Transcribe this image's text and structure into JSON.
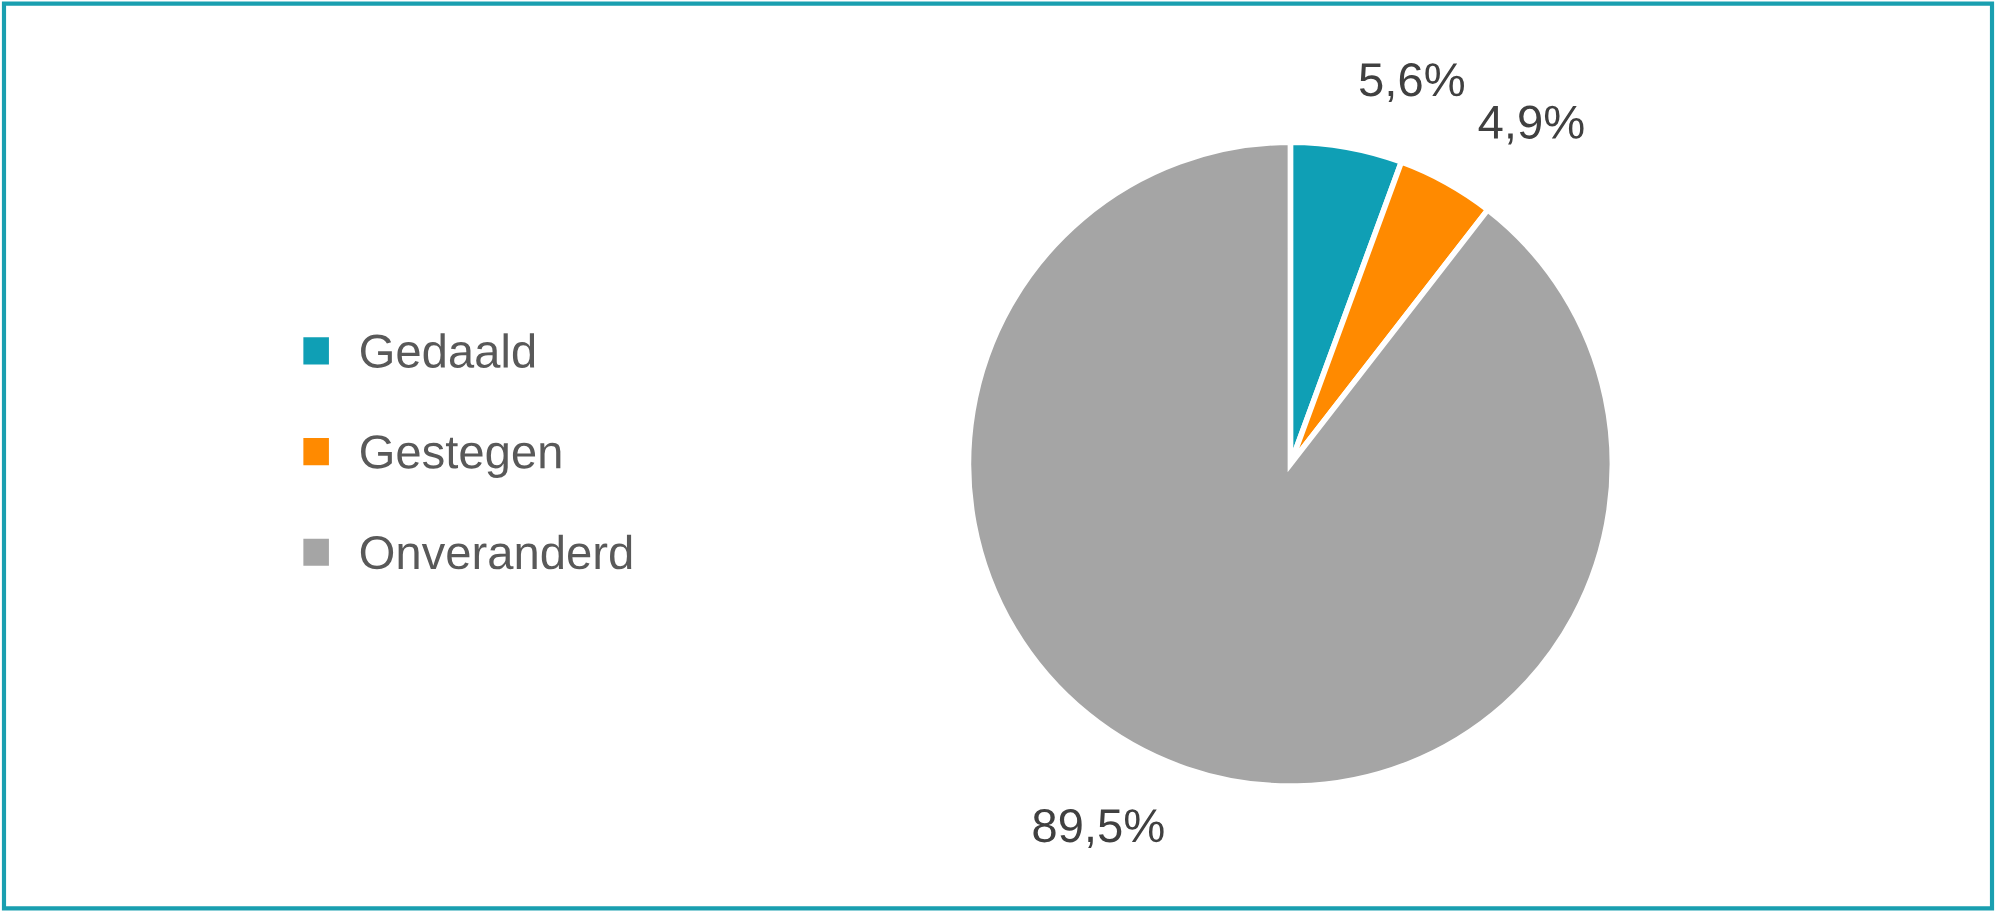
{
  "chart_data": {
    "type": "pie",
    "categories": [
      "Gedaald",
      "Gestegen",
      "Onveranderd"
    ],
    "values": [
      5.6,
      4.9,
      89.5
    ],
    "value_labels": [
      "5,6%",
      "4,9%",
      "89,5%"
    ],
    "colors": [
      "#0f9fb5",
      "#ff8a00",
      "#a5a5a5"
    ],
    "legend": "left"
  }
}
